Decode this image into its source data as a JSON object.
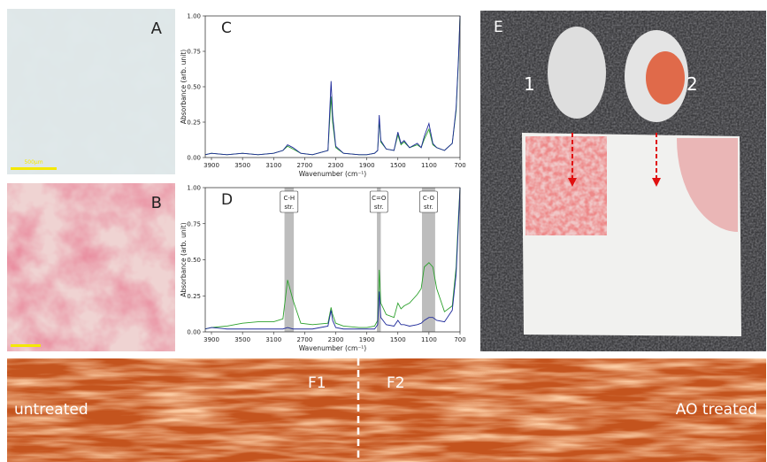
{
  "panels": {
    "A": {
      "label": "A",
      "scale_bar": "500µm"
    },
    "B": {
      "label": "B"
    },
    "E": {
      "label": "E",
      "items": [
        "1",
        "2"
      ]
    },
    "F": {
      "labels": [
        "F1",
        "F2"
      ],
      "left": "untreated",
      "right": "AO treated"
    }
  },
  "chart_data": [
    {
      "type": "line",
      "label": "C",
      "x_label": "Wavenumber (cm⁻¹)",
      "y_label": "Absorbance (arb. unit)",
      "xlim": [
        3980,
        700
      ],
      "ylim": [
        0,
        1
      ],
      "xticks": [
        3900,
        3500,
        3100,
        2700,
        2300,
        1900,
        1500,
        1100,
        700
      ],
      "yticks": [
        {
          "value": 0,
          "label": "0.00"
        },
        {
          "value": 0.25,
          "label": "0.25"
        },
        {
          "value": 0.5,
          "label": "0.50"
        },
        {
          "value": 0.75,
          "label": "0.75"
        },
        {
          "value": 1,
          "label": "1.00"
        }
      ],
      "x": [
        3980,
        3900,
        3700,
        3500,
        3300,
        3100,
        2980,
        2920,
        2850,
        2750,
        2600,
        2400,
        2360,
        2340,
        2300,
        2200,
        2000,
        1900,
        1800,
        1760,
        1740,
        1720,
        1650,
        1550,
        1500,
        1460,
        1420,
        1350,
        1250,
        1200,
        1160,
        1100,
        1050,
        1000,
        900,
        800,
        750,
        720,
        700
      ],
      "series": [
        {
          "color": "#2ca02c",
          "values": [
            0.02,
            0.03,
            0.02,
            0.03,
            0.02,
            0.03,
            0.05,
            0.08,
            0.06,
            0.03,
            0.02,
            0.05,
            0.43,
            0.25,
            0.07,
            0.03,
            0.02,
            0.02,
            0.03,
            0.05,
            0.27,
            0.11,
            0.06,
            0.05,
            0.16,
            0.09,
            0.11,
            0.07,
            0.09,
            0.07,
            0.13,
            0.2,
            0.09,
            0.07,
            0.05,
            0.1,
            0.33,
            0.68,
            1.0
          ]
        },
        {
          "color": "#1f2a9a",
          "values": [
            0.02,
            0.03,
            0.02,
            0.03,
            0.02,
            0.03,
            0.05,
            0.09,
            0.07,
            0.03,
            0.02,
            0.05,
            0.54,
            0.3,
            0.08,
            0.03,
            0.02,
            0.02,
            0.03,
            0.05,
            0.3,
            0.12,
            0.06,
            0.05,
            0.18,
            0.1,
            0.12,
            0.07,
            0.1,
            0.07,
            0.15,
            0.24,
            0.1,
            0.07,
            0.05,
            0.1,
            0.35,
            0.7,
            1.0
          ]
        }
      ]
    },
    {
      "type": "line",
      "label": "D",
      "x_label": "Wavenumber (cm⁻¹)",
      "y_label": "Absorbance (arb. unit)",
      "xlim": [
        3980,
        700
      ],
      "ylim": [
        0,
        1
      ],
      "xticks": [
        3900,
        3500,
        3100,
        2700,
        2300,
        1900,
        1500,
        1100,
        700
      ],
      "yticks": [
        {
          "value": 0,
          "label": "0.00"
        },
        {
          "value": 0.25,
          "label": "0.25"
        },
        {
          "value": 0.5,
          "label": "0.50"
        },
        {
          "value": 0.75,
          "label": "0.75"
        },
        {
          "value": 1,
          "label": "1.00"
        }
      ],
      "bands": [
        {
          "lines": [
            "C-H",
            "str."
          ],
          "range": [
            2960,
            2840
          ]
        },
        {
          "lines": [
            "C=O",
            "str."
          ],
          "range": [
            1770,
            1720
          ]
        },
        {
          "lines": [
            "C-O",
            "str."
          ],
          "range": [
            1190,
            1020
          ]
        }
      ],
      "x": [
        3980,
        3900,
        3700,
        3500,
        3300,
        3100,
        2980,
        2920,
        2850,
        2750,
        2600,
        2400,
        2360,
        2340,
        2300,
        2200,
        2000,
        1900,
        1800,
        1760,
        1740,
        1720,
        1650,
        1550,
        1500,
        1460,
        1420,
        1350,
        1250,
        1200,
        1160,
        1100,
        1050,
        1000,
        900,
        800,
        750,
        720,
        700
      ],
      "series": [
        {
          "color": "#2ca02c",
          "values": [
            0.02,
            0.03,
            0.04,
            0.06,
            0.07,
            0.07,
            0.09,
            0.36,
            0.22,
            0.06,
            0.05,
            0.06,
            0.17,
            0.12,
            0.06,
            0.04,
            0.03,
            0.03,
            0.04,
            0.08,
            0.43,
            0.2,
            0.12,
            0.1,
            0.2,
            0.16,
            0.18,
            0.2,
            0.26,
            0.3,
            0.45,
            0.48,
            0.45,
            0.3,
            0.14,
            0.18,
            0.45,
            0.8,
            1.0
          ]
        },
        {
          "color": "#1f2a9a",
          "values": [
            0.02,
            0.03,
            0.02,
            0.02,
            0.02,
            0.02,
            0.02,
            0.03,
            0.02,
            0.02,
            0.02,
            0.04,
            0.15,
            0.08,
            0.03,
            0.02,
            0.02,
            0.02,
            0.02,
            0.05,
            0.28,
            0.1,
            0.05,
            0.04,
            0.08,
            0.05,
            0.05,
            0.04,
            0.05,
            0.06,
            0.08,
            0.1,
            0.1,
            0.08,
            0.07,
            0.15,
            0.4,
            0.75,
            1.0
          ]
        }
      ]
    }
  ]
}
